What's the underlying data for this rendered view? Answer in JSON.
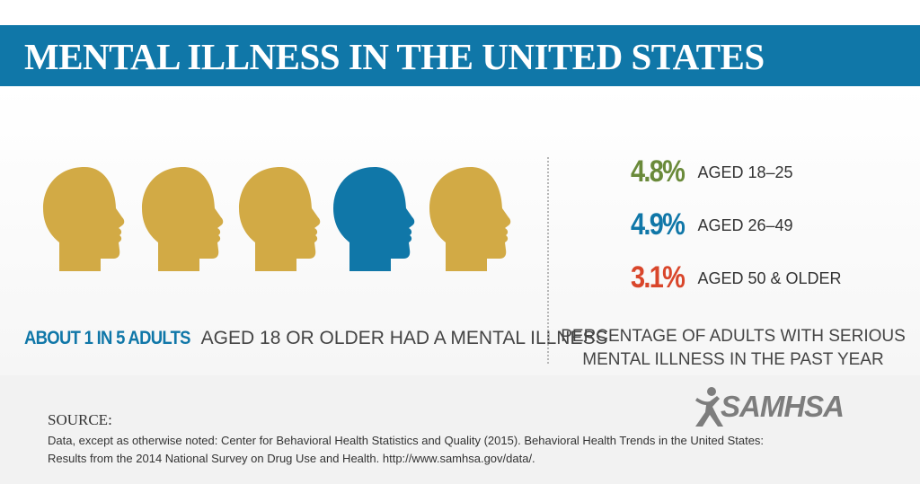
{
  "header": {
    "title": "MENTAL ILLNESS IN THE UNITED STATES"
  },
  "heads": [
    {
      "color": "#d2aa45",
      "label": "gold"
    },
    {
      "color": "#d2aa45",
      "label": "gold"
    },
    {
      "color": "#d2aa45",
      "label": "gold"
    },
    {
      "color": "#1077a8",
      "label": "blue"
    },
    {
      "color": "#d2aa45",
      "label": "gold"
    }
  ],
  "stat": {
    "highlight": "ABOUT 1 IN 5 ADULTS",
    "rest": "AGED 18 OR OLDER HAD A MENTAL ILLNESS"
  },
  "ages": [
    {
      "pct": "4.8%",
      "label": "AGED 18–25",
      "color": "#6a8a3a"
    },
    {
      "pct": "4.9%",
      "label": "AGED 26–49",
      "color": "#1077a8"
    },
    {
      "pct": "3.1%",
      "label": "AGED 50 & OLDER",
      "color": "#d9462b"
    }
  ],
  "caption": {
    "line1": "PERCENTAGE OF ADULTS WITH SERIOUS",
    "line2": "MENTAL ILLNESS IN THE PAST YEAR"
  },
  "source": {
    "heading": "SOURCE:",
    "line1": "Data, except as otherwise noted: Center for Behavioral Health Statistics and Quality (2015). Behavioral Health Trends in the United States:",
    "line2": "Results from the 2014 National Survey on Drug Use and Health. http://www.samhsa.gov/data/."
  },
  "logo": {
    "text": "SAMHSA",
    "icon": "person-icon"
  }
}
